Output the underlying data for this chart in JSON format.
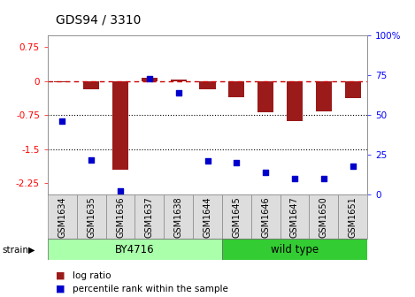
{
  "title": "GDS94 / 3310",
  "samples": [
    "GSM1634",
    "GSM1635",
    "GSM1636",
    "GSM1637",
    "GSM1638",
    "GSM1644",
    "GSM1645",
    "GSM1646",
    "GSM1647",
    "GSM1650",
    "GSM1651"
  ],
  "log_ratio": [
    -0.02,
    -0.18,
    -1.95,
    0.08,
    0.04,
    -0.18,
    -0.35,
    -0.68,
    -0.88,
    -0.67,
    -0.38
  ],
  "percentile_rank": [
    46,
    22,
    2,
    73,
    64,
    21,
    20,
    14,
    10,
    10,
    18
  ],
  "by4716_count": 6,
  "bar_color": "#9B1A1A",
  "dot_color": "#0000CC",
  "dashed_line_color": "#CC0000",
  "dotted_line_color": "#000000",
  "by4716_color": "#AAFFAA",
  "wild_type_color": "#33CC33",
  "ylim_left": [
    -2.5,
    1.0
  ],
  "ylim_right": [
    0,
    100
  ],
  "yticks_left": [
    0.75,
    0,
    -0.75,
    -1.5,
    -2.25
  ],
  "yticks_right": [
    100,
    75,
    50,
    25,
    0
  ],
  "title_fontsize": 10,
  "tick_fontsize": 7.5,
  "label_fontsize": 7
}
